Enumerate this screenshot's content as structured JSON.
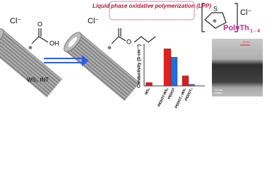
{
  "scheme": {
    "process_label": "Liquid phase oxidative polymerization (LPP)",
    "counter_ion": "Cl⁻",
    "counter_ion_2": "Cl⁻",
    "counter_ion_3": "Cl⁻",
    "charge": "⊕",
    "charge_2": "⊕",
    "charge_3": "⊕",
    "hydroxyl": "OH",
    "carbonyl_o": "O",
    "ester_o": "O",
    "tube_label": "WS₂ INT",
    "sulfur": "S",
    "polymer": "PolyTh",
    "polymer_index": "1 - 4",
    "scale_bar": "10 nm",
    "scale_bar_2": "5 nm"
  },
  "chart_data": {
    "type": "bar",
    "y_label": "Conductivity (S·cm⁻¹)",
    "categories": [
      "WS₂",
      "PEDOT-WS₂",
      "PEDOT",
      "PEDOT₂-WS₂",
      "PEDOT₂"
    ],
    "values": [
      2,
      22,
      17,
      6,
      1
    ],
    "colors": [
      "#d42020",
      "#e02020",
      "#1e6fe0",
      "#d42020",
      "#1e6fe0"
    ],
    "ylim": [
      0,
      25
    ]
  }
}
